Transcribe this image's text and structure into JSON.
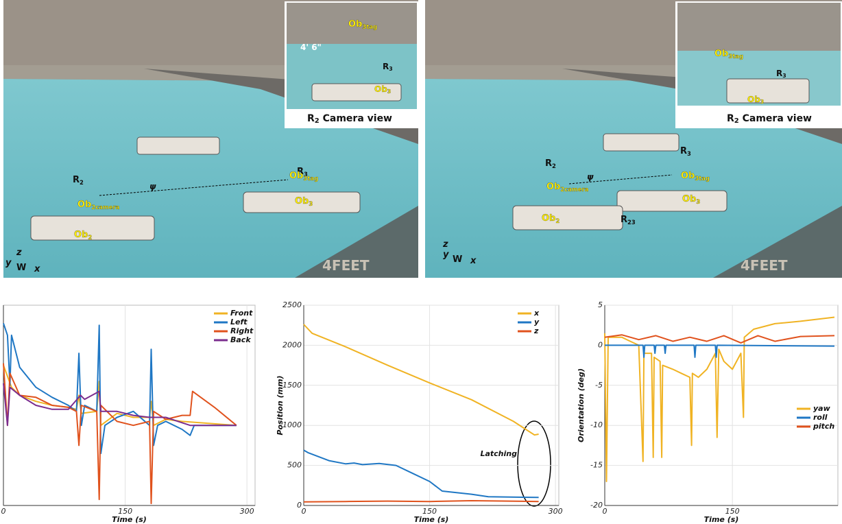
{
  "photos": [
    {
      "labels": [
        {
          "text": "R",
          "sub": "3"
        },
        {
          "text": "R",
          "sub": "2"
        },
        {
          "text": "Ob",
          "sub": "3tag"
        },
        {
          "text": "Ob",
          "sub": "2camera"
        },
        {
          "text": "ψ"
        },
        {
          "text": "Ob",
          "sub": "3"
        },
        {
          "text": "Ob",
          "sub": "2"
        },
        {
          "text": "z"
        },
        {
          "text": "y"
        },
        {
          "text": "W"
        },
        {
          "text": "x"
        },
        {
          "text": "Ob",
          "sub": "3tag"
        },
        {
          "text": "R",
          "sub": "3"
        },
        {
          "text": "Ob",
          "sub": "3"
        },
        {
          "text": "4' 6\""
        },
        {
          "text": "4FEET"
        }
      ],
      "caption": {
        "text": "R",
        "sub": "2",
        "tail": " Camera view"
      }
    },
    {
      "labels": [
        {
          "text": "R",
          "sub": "3"
        },
        {
          "text": "R",
          "sub": "2"
        },
        {
          "text": "Ob",
          "sub": "3tag"
        },
        {
          "text": "Ob",
          "sub": "2camera"
        },
        {
          "text": "ψ"
        },
        {
          "text": "Ob",
          "sub": "3"
        },
        {
          "text": "Ob",
          "sub": "2"
        },
        {
          "text": "z"
        },
        {
          "text": "y"
        },
        {
          "text": "W"
        },
        {
          "text": "x"
        },
        {
          "text": "Ob",
          "sub": "3tag"
        },
        {
          "text": "R",
          "sub": "3"
        },
        {
          "text": "Ob",
          "sub": "3"
        },
        {
          "text": "R",
          "sub": "23"
        },
        {
          "text": "4FEET"
        }
      ],
      "caption": {
        "text": "R",
        "sub": "2",
        "tail": " Camera view"
      }
    }
  ],
  "chart_data": [
    {
      "type": "line",
      "xlabel": "Time (s)",
      "xlim": [
        0,
        310
      ],
      "xticks": [
        0,
        150,
        300
      ],
      "ylim": [
        0,
        100
      ],
      "grid": true,
      "legend": "top-right",
      "series": [
        {
          "name": "Front",
          "color": "#f0b323",
          "x": [
            0,
            10,
            20,
            40,
            60,
            80,
            90,
            93,
            96,
            115,
            118,
            120,
            140,
            160,
            180,
            182,
            185,
            200,
            220,
            287
          ],
          "values": [
            70,
            59,
            55,
            52,
            50,
            49,
            48,
            55,
            46,
            47,
            62,
            40,
            46,
            44,
            44,
            52,
            40,
            43,
            42,
            40
          ]
        },
        {
          "name": "Left",
          "color": "#1f77c4",
          "x": [
            0,
            5,
            8,
            10,
            20,
            40,
            60,
            80,
            90,
            93,
            96,
            100,
            115,
            118,
            120,
            125,
            140,
            160,
            180,
            182,
            185,
            190,
            200,
            220,
            230,
            235,
            287
          ],
          "values": [
            91,
            85,
            60,
            85,
            69,
            59,
            54,
            50,
            47,
            76,
            40,
            50,
            47,
            90,
            26,
            40,
            44,
            47,
            40,
            78,
            30,
            40,
            42,
            38,
            35,
            40,
            40
          ]
        },
        {
          "name": "Right",
          "color": "#e0521d",
          "x": [
            0,
            5,
            8,
            20,
            40,
            60,
            80,
            90,
            93,
            96,
            115,
            118,
            120,
            140,
            160,
            180,
            182,
            185,
            200,
            220,
            230,
            233,
            260,
            287
          ],
          "values": [
            71,
            40,
            66,
            55,
            54,
            50,
            49,
            47,
            30,
            50,
            47,
            3,
            50,
            42,
            40,
            42,
            1,
            47,
            43,
            45,
            45,
            57,
            49,
            40
          ]
        },
        {
          "name": "Back",
          "color": "#7b2d8e",
          "x": [
            0,
            5,
            8,
            20,
            40,
            60,
            80,
            95,
            100,
            118,
            120,
            140,
            160,
            180,
            200,
            230,
            287
          ],
          "values": [
            61,
            40,
            59,
            55,
            50,
            48,
            48,
            55,
            53,
            57,
            47,
            47,
            45,
            44,
            44,
            40,
            40
          ]
        }
      ]
    },
    {
      "type": "line",
      "xlabel": "Time (s)",
      "ylabel": "Position (mm)",
      "xlim": [
        0,
        304
      ],
      "xticks": [
        0,
        150,
        300
      ],
      "ylim": [
        0,
        2500
      ],
      "yticks": [
        0,
        500,
        1000,
        1500,
        2000,
        2500
      ],
      "grid": true,
      "legend": "top-right",
      "annotation": "Latching",
      "series": [
        {
          "name": "x",
          "color": "#f0b323",
          "x": [
            0,
            10,
            50,
            100,
            150,
            200,
            250,
            275,
            280
          ],
          "values": [
            2260,
            2150,
            1980,
            1750,
            1530,
            1320,
            1050,
            880,
            890
          ]
        },
        {
          "name": "y",
          "color": "#1f77c4",
          "x": [
            0,
            5,
            30,
            50,
            60,
            70,
            90,
            110,
            130,
            150,
            165,
            200,
            220,
            280
          ],
          "values": [
            690,
            660,
            560,
            520,
            530,
            510,
            525,
            500,
            400,
            300,
            180,
            140,
            110,
            100
          ]
        },
        {
          "name": "z",
          "color": "#e0521d",
          "x": [
            0,
            50,
            100,
            150,
            200,
            280
          ],
          "values": [
            45,
            50,
            55,
            50,
            60,
            50
          ]
        }
      ]
    },
    {
      "type": "line",
      "xlabel": "Time (s)",
      "ylabel": "Orientation (deg)",
      "xlim": [
        0,
        274
      ],
      "xticks": [
        0,
        150
      ],
      "ylim": [
        -20,
        5
      ],
      "yticks": [
        -20,
        -15,
        -10,
        -5,
        0,
        5
      ],
      "grid": true,
      "legend": "right",
      "series": [
        {
          "name": "yaw",
          "color": "#f0b323",
          "x": [
            0,
            2,
            4,
            20,
            30,
            40,
            45,
            46,
            55,
            57,
            58,
            65,
            67,
            68,
            80,
            90,
            100,
            102,
            103,
            110,
            120,
            130,
            132,
            134,
            140,
            150,
            160,
            163,
            164,
            175,
            200,
            230,
            270
          ],
          "values": [
            1.5,
            -17,
            1,
            1,
            0.5,
            0,
            -14.5,
            -1,
            -1,
            -14,
            -1.5,
            -2,
            -14,
            -2.5,
            -3,
            -3.5,
            -4,
            -12.5,
            -3.5,
            -4,
            -3,
            -1,
            -11.5,
            -0.5,
            -2,
            -3,
            -1,
            -9,
            1,
            2,
            2.7,
            3,
            3.5
          ]
        },
        {
          "name": "roll",
          "color": "#1f77c4",
          "x": [
            0,
            45,
            46,
            47,
            58,
            59,
            60,
            70,
            71,
            72,
            105,
            106,
            107,
            130,
            131,
            132,
            270
          ],
          "values": [
            0,
            0,
            -1.5,
            0,
            0,
            -1,
            0,
            0,
            -1,
            0,
            0,
            -1.5,
            0,
            0,
            -1.5,
            0,
            -0.1
          ]
        },
        {
          "name": "pitch",
          "color": "#e0521d",
          "x": [
            0,
            20,
            40,
            60,
            80,
            100,
            120,
            140,
            160,
            180,
            200,
            230,
            270
          ],
          "values": [
            1,
            1.3,
            0.7,
            1.2,
            0.5,
            1,
            0.5,
            1.2,
            0.3,
            1.2,
            0.5,
            1.1,
            1.2
          ]
        }
      ]
    }
  ]
}
